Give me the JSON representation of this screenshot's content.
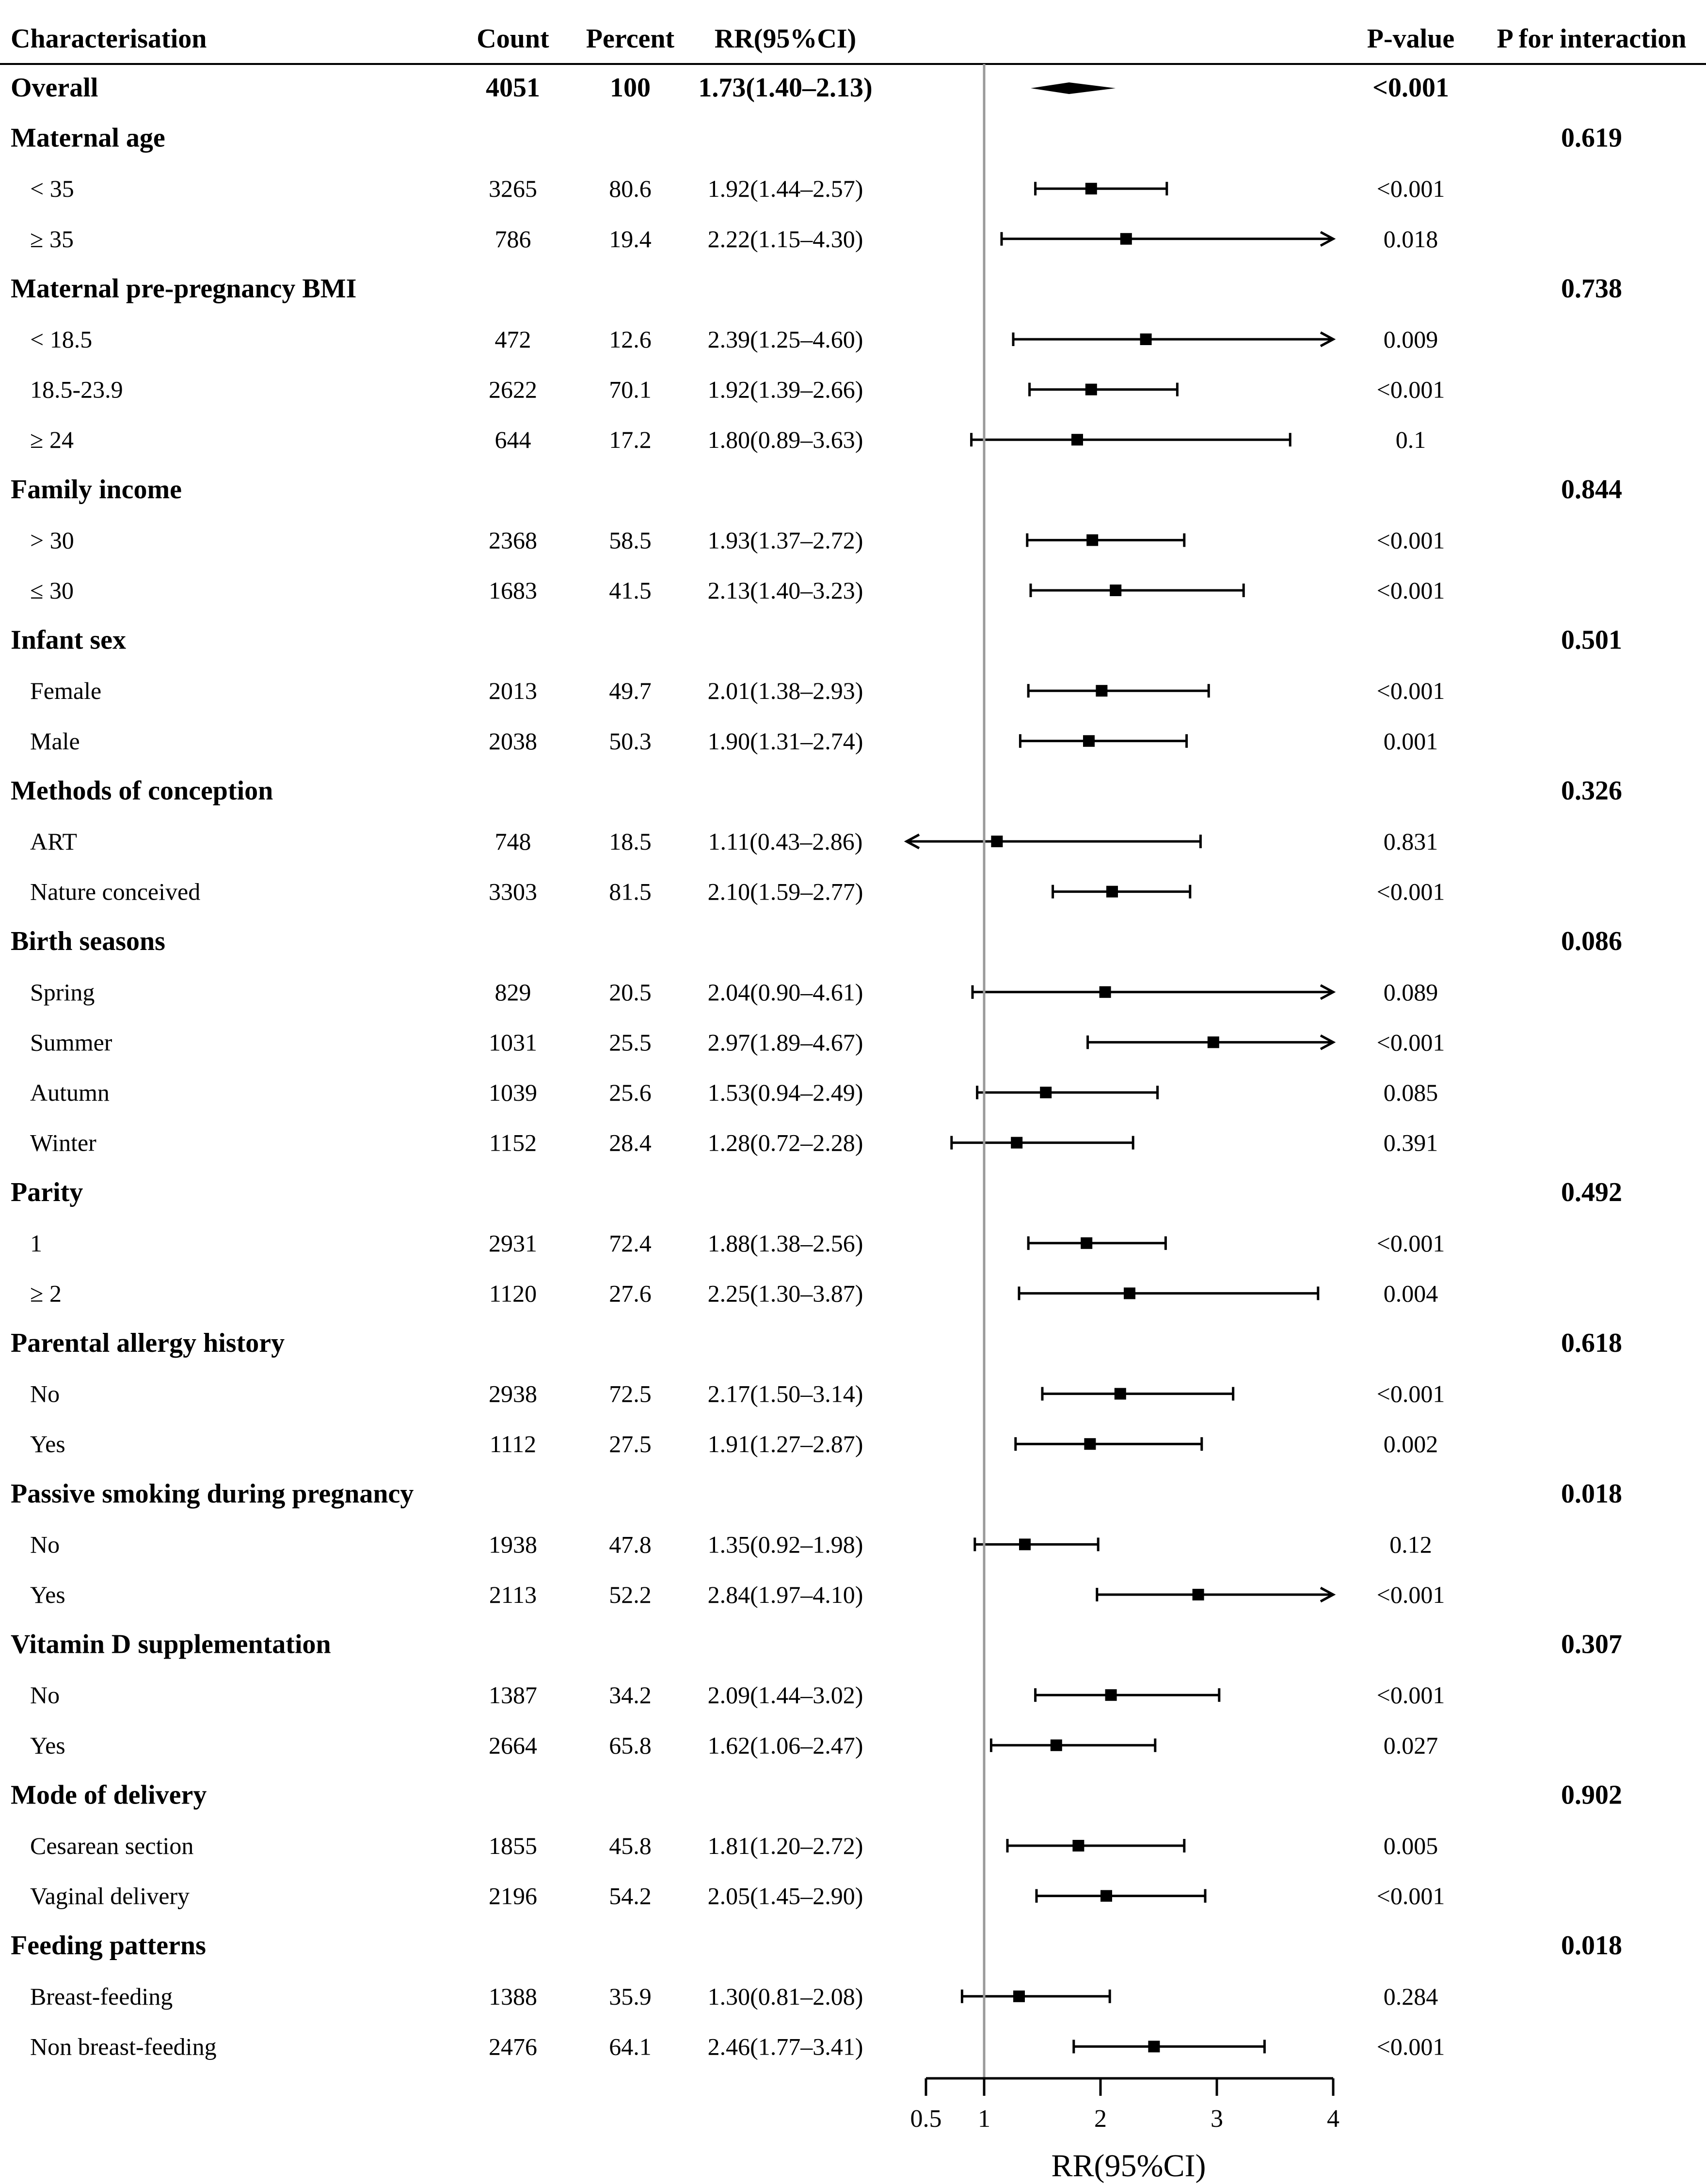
{
  "chart_data": {
    "type": "forest",
    "headers": {
      "characterisation": "Characterisation",
      "count": "Count",
      "percent": "Percent",
      "rr": "RR(95%CI)",
      "pvalue": "P-value",
      "pinteraction": "P for interaction"
    },
    "xlabel": "RR(95%CI)",
    "xticks": [
      0.5,
      1,
      2,
      3,
      4
    ],
    "xtick_labels": [
      "0.5",
      "1",
      "2",
      "3",
      "4"
    ],
    "xlim": [
      0.5,
      4
    ],
    "reference_line": 1,
    "rows": [
      {
        "kind": "overall",
        "label": "Overall",
        "count": "4051",
        "percent": "100",
        "rr_text": "1.73(1.40–2.13)",
        "rr": 1.73,
        "lo": 1.4,
        "hi": 2.13,
        "p": "<0.001",
        "pint": ""
      },
      {
        "kind": "group",
        "label": "Maternal age",
        "pint": "0.619"
      },
      {
        "kind": "sub",
        "label": "< 35",
        "count": "3265",
        "percent": "80.6",
        "rr_text": "1.92(1.44–2.57)",
        "rr": 1.92,
        "lo": 1.44,
        "hi": 2.57,
        "p": "<0.001"
      },
      {
        "kind": "sub",
        "label": "≥ 35",
        "count": "786",
        "percent": "19.4",
        "rr_text": "2.22(1.15–4.30)",
        "rr": 2.22,
        "lo": 1.15,
        "hi": 4.3,
        "p": "0.018"
      },
      {
        "kind": "group",
        "label": "Maternal pre-pregnancy BMI",
        "pint": "0.738"
      },
      {
        "kind": "sub",
        "label": "< 18.5",
        "count": "472",
        "percent": "12.6",
        "rr_text": "2.39(1.25–4.60)",
        "rr": 2.39,
        "lo": 1.25,
        "hi": 4.6,
        "p": "0.009"
      },
      {
        "kind": "sub",
        "label": "18.5-23.9",
        "count": "2622",
        "percent": "70.1",
        "rr_text": "1.92(1.39–2.66)",
        "rr": 1.92,
        "lo": 1.39,
        "hi": 2.66,
        "p": "<0.001"
      },
      {
        "kind": "sub",
        "label": "≥ 24",
        "count": "644",
        "percent": "17.2",
        "rr_text": "1.80(0.89–3.63)",
        "rr": 1.8,
        "lo": 0.89,
        "hi": 3.63,
        "p": "0.1"
      },
      {
        "kind": "group",
        "label": "Family income",
        "pint": "0.844"
      },
      {
        "kind": "sub",
        "label": "> 30",
        "count": "2368",
        "percent": "58.5",
        "rr_text": "1.93(1.37–2.72)",
        "rr": 1.93,
        "lo": 1.37,
        "hi": 2.72,
        "p": "<0.001"
      },
      {
        "kind": "sub",
        "label": "≤ 30",
        "count": "1683",
        "percent": "41.5",
        "rr_text": "2.13(1.40–3.23)",
        "rr": 2.13,
        "lo": 1.4,
        "hi": 3.23,
        "p": "<0.001"
      },
      {
        "kind": "group",
        "label": "Infant sex",
        "pint": "0.501"
      },
      {
        "kind": "sub",
        "label": "Female",
        "count": "2013",
        "percent": "49.7",
        "rr_text": "2.01(1.38–2.93)",
        "rr": 2.01,
        "lo": 1.38,
        "hi": 2.93,
        "p": "<0.001"
      },
      {
        "kind": "sub",
        "label": "Male",
        "count": "2038",
        "percent": "50.3",
        "rr_text": "1.90(1.31–2.74)",
        "rr": 1.9,
        "lo": 1.31,
        "hi": 2.74,
        "p": "0.001"
      },
      {
        "kind": "group",
        "label": "Methods of conception",
        "pint": "0.326"
      },
      {
        "kind": "sub",
        "label": "ART",
        "count": "748",
        "percent": "18.5",
        "rr_text": "1.11(0.43–2.86)",
        "rr": 1.11,
        "lo": 0.43,
        "hi": 2.86,
        "p": "0.831"
      },
      {
        "kind": "sub",
        "label": "Nature conceived",
        "count": "3303",
        "percent": "81.5",
        "rr_text": "2.10(1.59–2.77)",
        "rr": 2.1,
        "lo": 1.59,
        "hi": 2.77,
        "p": "<0.001"
      },
      {
        "kind": "group",
        "label": "Birth seasons",
        "pint": "0.086"
      },
      {
        "kind": "sub",
        "label": "Spring",
        "count": "829",
        "percent": "20.5",
        "rr_text": "2.04(0.90–4.61)",
        "rr": 2.04,
        "lo": 0.9,
        "hi": 4.61,
        "p": "0.089"
      },
      {
        "kind": "sub",
        "label": "Summer",
        "count": "1031",
        "percent": "25.5",
        "rr_text": "2.97(1.89–4.67)",
        "rr": 2.97,
        "lo": 1.89,
        "hi": 4.67,
        "p": "<0.001"
      },
      {
        "kind": "sub",
        "label": "Autumn",
        "count": "1039",
        "percent": "25.6",
        "rr_text": "1.53(0.94–2.49)",
        "rr": 1.53,
        "lo": 0.94,
        "hi": 2.49,
        "p": "0.085"
      },
      {
        "kind": "sub",
        "label": "Winter",
        "count": "1152",
        "percent": "28.4",
        "rr_text": "1.28(0.72–2.28)",
        "rr": 1.28,
        "lo": 0.72,
        "hi": 2.28,
        "p": "0.391"
      },
      {
        "kind": "group",
        "label": "Parity",
        "pint": "0.492"
      },
      {
        "kind": "sub",
        "label": "1",
        "count": "2931",
        "percent": "72.4",
        "rr_text": "1.88(1.38–2.56)",
        "rr": 1.88,
        "lo": 1.38,
        "hi": 2.56,
        "p": "<0.001"
      },
      {
        "kind": "sub",
        "label": "≥ 2",
        "count": "1120",
        "percent": "27.6",
        "rr_text": "2.25(1.30–3.87)",
        "rr": 2.25,
        "lo": 1.3,
        "hi": 3.87,
        "p": "0.004"
      },
      {
        "kind": "group",
        "label": "Parental allergy history",
        "pint": "0.618"
      },
      {
        "kind": "sub",
        "label": "No",
        "count": "2938",
        "percent": "72.5",
        "rr_text": "2.17(1.50–3.14)",
        "rr": 2.17,
        "lo": 1.5,
        "hi": 3.14,
        "p": "<0.001"
      },
      {
        "kind": "sub",
        "label": "Yes",
        "count": "1112",
        "percent": "27.5",
        "rr_text": "1.91(1.27–2.87)",
        "rr": 1.91,
        "lo": 1.27,
        "hi": 2.87,
        "p": "0.002"
      },
      {
        "kind": "group",
        "label": "Passive smoking during pregnancy",
        "pint": "0.018"
      },
      {
        "kind": "sub",
        "label": "No",
        "count": "1938",
        "percent": "47.8",
        "rr_text": "1.35(0.92–1.98)",
        "rr": 1.35,
        "lo": 0.92,
        "hi": 1.98,
        "p": "0.12"
      },
      {
        "kind": "sub",
        "label": "Yes",
        "count": "2113",
        "percent": "52.2",
        "rr_text": "2.84(1.97–4.10)",
        "rr": 2.84,
        "lo": 1.97,
        "hi": 4.1,
        "p": "<0.001"
      },
      {
        "kind": "group",
        "label": "Vitamin D supplementation",
        "pint": "0.307"
      },
      {
        "kind": "sub",
        "label": "No",
        "count": "1387",
        "percent": "34.2",
        "rr_text": "2.09(1.44–3.02)",
        "rr": 2.09,
        "lo": 1.44,
        "hi": 3.02,
        "p": "<0.001"
      },
      {
        "kind": "sub",
        "label": "Yes",
        "count": "2664",
        "percent": "65.8",
        "rr_text": "1.62(1.06–2.47)",
        "rr": 1.62,
        "lo": 1.06,
        "hi": 2.47,
        "p": "0.027"
      },
      {
        "kind": "group",
        "label": "Mode of delivery",
        "pint": "0.902"
      },
      {
        "kind": "sub",
        "label": "Cesarean section",
        "count": "1855",
        "percent": "45.8",
        "rr_text": "1.81(1.20–2.72)",
        "rr": 1.81,
        "lo": 1.2,
        "hi": 2.72,
        "p": "0.005"
      },
      {
        "kind": "sub",
        "label": "Vaginal delivery",
        "count": "2196",
        "percent": "54.2",
        "rr_text": "2.05(1.45–2.90)",
        "rr": 2.05,
        "lo": 1.45,
        "hi": 2.9,
        "p": "<0.001"
      },
      {
        "kind": "group",
        "label": "Feeding patterns",
        "pint": "0.018"
      },
      {
        "kind": "sub",
        "label": "Breast-feeding",
        "count": "1388",
        "percent": "35.9",
        "rr_text": "1.30(0.81–2.08)",
        "rr": 1.3,
        "lo": 0.81,
        "hi": 2.08,
        "p": "0.284"
      },
      {
        "kind": "sub",
        "label": "Non breast-feeding",
        "count": "2476",
        "percent": "64.1",
        "rr_text": "2.46(1.77–3.41)",
        "rr": 2.46,
        "lo": 1.77,
        "hi": 3.41,
        "p": "<0.001"
      }
    ]
  }
}
